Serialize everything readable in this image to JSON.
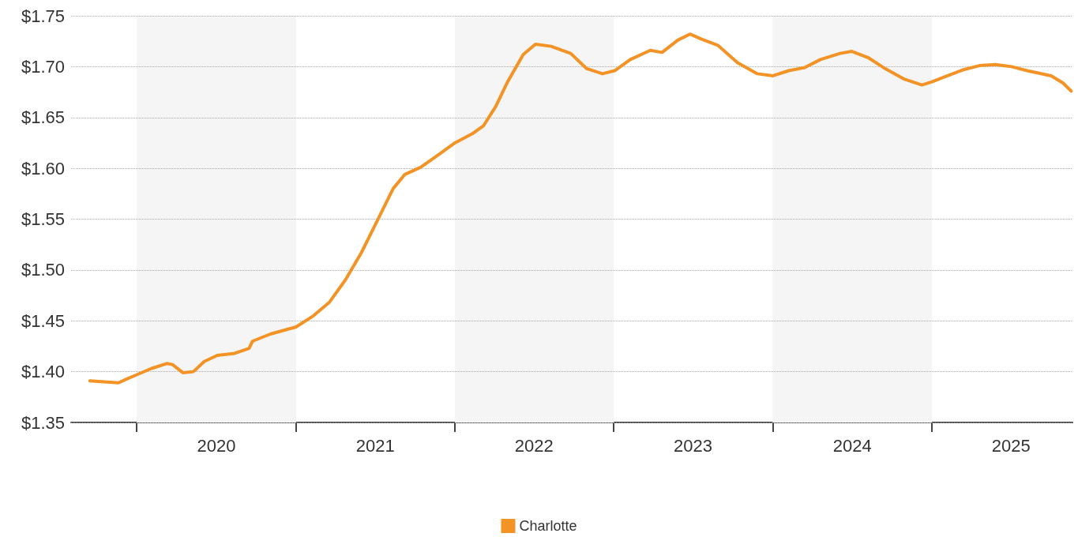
{
  "chart_data": {
    "type": "line",
    "x": [
      "2019-09-15",
      "2019-11-20",
      "2019-12-10",
      "2020-01-01",
      "2020-02-03",
      "2020-03-10",
      "2020-03-23",
      "2020-04-16",
      "2020-05-10",
      "2020-06-04",
      "2020-07-04",
      "2020-08-13",
      "2020-09-15",
      "2020-09-23",
      "2020-11-03",
      "2021-01-01",
      "2021-02-10",
      "2021-03-18",
      "2021-04-24",
      "2021-05-31",
      "2021-07-06",
      "2021-08-12",
      "2021-09-08",
      "2021-10-14",
      "2021-11-20",
      "2022-01-01",
      "2022-02-10",
      "2022-03-08",
      "2022-04-05",
      "2022-05-02",
      "2022-06-07",
      "2022-07-05",
      "2022-08-10",
      "2022-09-24",
      "2022-10-31",
      "2022-12-06",
      "2023-01-03",
      "2023-02-08",
      "2023-03-26",
      "2023-04-22",
      "2023-05-28",
      "2023-06-25",
      "2023-07-22",
      "2023-08-28",
      "2023-10-12",
      "2023-11-27",
      "2024-01-02",
      "2024-02-07",
      "2024-03-14",
      "2024-04-20",
      "2024-06-04",
      "2024-07-01",
      "2024-08-07",
      "2024-09-12",
      "2024-10-28",
      "2024-12-09",
      "2025-01-01",
      "2025-02-06",
      "2025-03-15",
      "2025-04-20",
      "2025-05-27",
      "2025-07-03",
      "2025-08-08",
      "2025-10-02",
      "2025-10-29",
      "2025-11-17"
    ],
    "series": [
      {
        "name": "Charlotte",
        "color": "#f39325",
        "values": [
          1.391,
          1.389,
          1.393,
          1.397,
          1.403,
          1.408,
          1.407,
          1.399,
          1.4,
          1.41,
          1.416,
          1.418,
          1.423,
          1.43,
          1.437,
          1.444,
          1.455,
          1.468,
          1.49,
          1.517,
          1.548,
          1.58,
          1.594,
          1.601,
          1.612,
          1.625,
          1.634,
          1.642,
          1.661,
          1.685,
          1.712,
          1.722,
          1.72,
          1.713,
          1.698,
          1.693,
          1.696,
          1.707,
          1.716,
          1.714,
          1.726,
          1.732,
          1.727,
          1.721,
          1.704,
          1.693,
          1.691,
          1.696,
          1.699,
          1.707,
          1.713,
          1.715,
          1.709,
          1.699,
          1.688,
          1.682,
          1.685,
          1.691,
          1.697,
          1.701,
          1.702,
          1.7,
          1.696,
          1.691,
          1.684,
          1.676
        ]
      }
    ],
    "xlim": [
      "2019-08-03",
      "2025-11-20"
    ],
    "xticks": [
      {
        "value": "2020-01-01",
        "label": null
      },
      {
        "value": "2020-07-02",
        "label": "2020"
      },
      {
        "value": "2021-01-01",
        "label": null
      },
      {
        "value": "2021-07-02",
        "label": "2021"
      },
      {
        "value": "2022-01-01",
        "label": null
      },
      {
        "value": "2022-07-02",
        "label": "2022"
      },
      {
        "value": "2023-01-01",
        "label": null
      },
      {
        "value": "2023-07-02",
        "label": "2023"
      },
      {
        "value": "2024-01-01",
        "label": null
      },
      {
        "value": "2024-07-02",
        "label": "2024"
      },
      {
        "value": "2025-01-01",
        "label": null
      },
      {
        "value": "2025-07-02",
        "label": "2025"
      }
    ],
    "ylim": [
      1.35,
      1.75
    ],
    "yticks": [
      {
        "value": 1.35,
        "label": "$1.35"
      },
      {
        "value": 1.4,
        "label": "$1.40"
      },
      {
        "value": 1.45,
        "label": "$1.45"
      },
      {
        "value": 1.5,
        "label": "$1.50"
      },
      {
        "value": 1.55,
        "label": "$1.55"
      },
      {
        "value": 1.6,
        "label": "$1.60"
      },
      {
        "value": 1.65,
        "label": "$1.65"
      },
      {
        "value": 1.7,
        "label": "$1.70"
      },
      {
        "value": 1.75,
        "label": "$1.75"
      }
    ],
    "bands": [
      {
        "axis": "x",
        "from": "2020-01-01",
        "to": "2021-01-01",
        "color": "#f5f5f5"
      },
      {
        "axis": "x",
        "from": "2022-01-01",
        "to": "2023-01-01",
        "color": "#f5f5f5"
      },
      {
        "axis": "x",
        "from": "2024-01-01",
        "to": "2025-01-01",
        "color": "#f5f5f5"
      }
    ],
    "grid": "y",
    "legend": "bottom",
    "marker": "none",
    "line_style": "solid"
  }
}
